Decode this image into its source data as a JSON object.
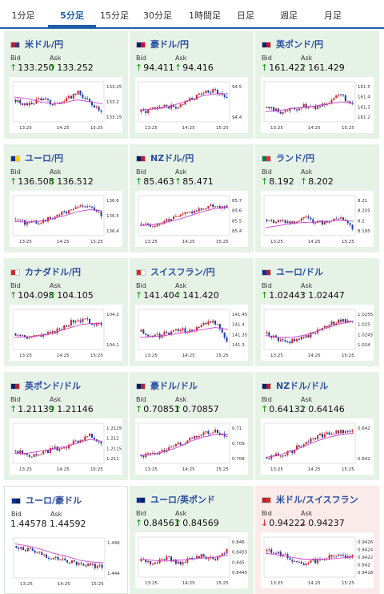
{
  "tabs": [
    "1分足",
    "5分足",
    "15分足",
    "30分足",
    "1時間足",
    "日足",
    "週足",
    "月足"
  ],
  "active_tab": "5分足",
  "colors": {
    "accent": "#1f5fa8",
    "up": "#1a8f1a",
    "down": "#d02020",
    "card_up": "#e7f2e7",
    "card_down": "#fbeaea",
    "candle_up": "#d42020",
    "candle_down": "#1a3ca8",
    "ma": "#cc44cc"
  },
  "bid_label": "Bid",
  "ask_label": "Ask",
  "pairs": [
    {
      "name": "米ドル/円",
      "bid": "133.250",
      "ask": "133.252",
      "dir": "up",
      "state": "up",
      "flag": [
        "#b22234",
        "#3c3b6e"
      ],
      "yticks": [
        "133.25",
        "133.2",
        "133.15"
      ],
      "xticks": [
        "13:25",
        "14:25",
        "15:25"
      ],
      "trend": [
        0.55,
        0.4,
        0.6,
        0.45,
        0.5,
        0.75,
        0.5,
        0.3
      ],
      "ma": [
        0.62,
        0.58,
        0.5,
        0.45,
        0.48,
        0.55,
        0.5,
        0.45
      ]
    },
    {
      "name": "豪ドル/円",
      "bid": "94.411",
      "ask": "94.416",
      "dir": "up",
      "state": "up",
      "flag": [
        "#012169",
        "#e4002b"
      ],
      "yticks": [
        "94.5",
        "94.4"
      ],
      "xticks": [
        "13:25",
        "14:25",
        "15:25"
      ],
      "trend": [
        0.25,
        0.3,
        0.4,
        0.35,
        0.55,
        0.7,
        0.8,
        0.6
      ],
      "ma": [
        0.3,
        0.32,
        0.35,
        0.45,
        0.55,
        0.65,
        0.7,
        0.7
      ]
    },
    {
      "name": "英ポンド/円",
      "bid": "161.422",
      "ask": "161.429",
      "dir": "up",
      "state": "up",
      "flag": [
        "#012169",
        "#c8102e"
      ],
      "yticks": [
        "161.5",
        "161.4",
        "161.3",
        "161.2"
      ],
      "xticks": [
        "13:25",
        "14:25",
        "15:25"
      ],
      "trend": [
        0.35,
        0.25,
        0.3,
        0.4,
        0.35,
        0.5,
        0.7,
        0.4
      ],
      "ma": [
        0.25,
        0.28,
        0.33,
        0.36,
        0.4,
        0.45,
        0.5,
        0.45
      ]
    },
    {
      "name": "ユーロ/円",
      "bid": "136.508",
      "ask": "136.512",
      "dir": "up",
      "state": "up",
      "flag": [
        "#003399",
        "#ffcc00"
      ],
      "yticks": [
        "136.6",
        "136.5",
        "136.4"
      ],
      "xticks": [
        "13:25",
        "14:25",
        "15:25"
      ],
      "trend": [
        0.4,
        0.3,
        0.35,
        0.45,
        0.6,
        0.7,
        0.75,
        0.5
      ],
      "ma": [
        0.35,
        0.34,
        0.36,
        0.42,
        0.5,
        0.6,
        0.65,
        0.62
      ]
    },
    {
      "name": "NZドル/円",
      "bid": "85.463",
      "ask": "85.471",
      "dir": "up",
      "state": "up",
      "flag": [
        "#012169",
        "#cc142b"
      ],
      "yticks": [
        "85.7",
        "85.6",
        "85.5",
        "85.4"
      ],
      "xticks": [
        "13:25",
        "14:25",
        "15:25"
      ],
      "trend": [
        0.3,
        0.25,
        0.4,
        0.5,
        0.55,
        0.7,
        0.75,
        0.72
      ],
      "ma": [
        0.25,
        0.28,
        0.33,
        0.4,
        0.5,
        0.6,
        0.68,
        0.7
      ]
    },
    {
      "name": "ランド/円",
      "bid": "8.192",
      "ask": "8.202",
      "dir": "up",
      "state": "up",
      "flag": [
        "#007a4d",
        "#de3831"
      ],
      "yticks": [
        "8.21",
        "8.205",
        "8.2",
        "8.195"
      ],
      "xticks": [
        "13:25",
        "14:25",
        "15:25"
      ],
      "trend": [
        0.4,
        0.35,
        0.3,
        0.45,
        0.35,
        0.3,
        0.5,
        0.2
      ],
      "ma": [
        0.2,
        0.25,
        0.3,
        0.33,
        0.34,
        0.36,
        0.38,
        0.36
      ]
    },
    {
      "name": "カナダドル/円",
      "bid": "104.098",
      "ask": "104.105",
      "dir": "up",
      "state": "up",
      "flag": [
        "#d52b1e",
        "#ffffff"
      ],
      "yticks": [
        "104.2",
        "104.1"
      ],
      "xticks": [
        "13:25",
        "14:25",
        "15:25"
      ],
      "trend": [
        0.4,
        0.3,
        0.35,
        0.4,
        0.6,
        0.75,
        0.7,
        0.6
      ],
      "ma": [
        0.3,
        0.32,
        0.34,
        0.4,
        0.5,
        0.6,
        0.65,
        0.65
      ]
    },
    {
      "name": "スイスフラン/円",
      "bid": "141.404",
      "ask": "141.420",
      "dir": "up",
      "state": "up",
      "flag": [
        "#d52b1e",
        "#ffffff"
      ],
      "yticks": [
        "141.45",
        "141.4",
        "141.35",
        "141.3"
      ],
      "xticks": [
        "13:25",
        "14:25",
        "15:25"
      ],
      "trend": [
        0.45,
        0.3,
        0.4,
        0.5,
        0.45,
        0.6,
        0.7,
        0.25
      ],
      "ma": [
        0.3,
        0.32,
        0.35,
        0.4,
        0.45,
        0.5,
        0.55,
        0.5
      ]
    },
    {
      "name": "ユーロ/ドル",
      "bid": "1.02443",
      "ask": "1.02447",
      "dir": "up",
      "state": "up",
      "flag": [
        "#003399",
        "#b22234"
      ],
      "yticks": [
        "1.0255",
        "1.025",
        "1.0245",
        "1.024"
      ],
      "xticks": [
        "13:25",
        "14:25",
        "15:25"
      ],
      "trend": [
        0.4,
        0.25,
        0.2,
        0.3,
        0.45,
        0.6,
        0.75,
        0.7
      ],
      "ma": [
        0.35,
        0.3,
        0.3,
        0.35,
        0.45,
        0.55,
        0.65,
        0.7
      ]
    },
    {
      "name": "英ポンド/ドル",
      "bid": "1.21139",
      "ask": "1.21146",
      "dir": "up",
      "state": "up",
      "flag": [
        "#012169",
        "#b22234"
      ],
      "yticks": [
        "1.2125",
        "1.212",
        "1.2115",
        "1.211"
      ],
      "xticks": [
        "13:25",
        "14:25",
        "15:25"
      ],
      "trend": [
        0.3,
        0.2,
        0.25,
        0.35,
        0.4,
        0.55,
        0.7,
        0.45
      ],
      "ma": [
        0.25,
        0.25,
        0.3,
        0.35,
        0.42,
        0.5,
        0.6,
        0.55
      ]
    },
    {
      "name": "豪ドル/ドル",
      "bid": "0.70851",
      "ask": "0.70857",
      "dir": "up",
      "state": "up",
      "flag": [
        "#012169",
        "#b22234"
      ],
      "yticks": [
        "0.71",
        "0.709",
        "0.708"
      ],
      "xticks": [
        "13:25",
        "14:25",
        "15:25"
      ],
      "trend": [
        0.2,
        0.2,
        0.3,
        0.45,
        0.6,
        0.75,
        0.8,
        0.7
      ],
      "ma": [
        0.2,
        0.22,
        0.3,
        0.4,
        0.55,
        0.65,
        0.72,
        0.72
      ]
    },
    {
      "name": "NZドル/ドル",
      "bid": "0.64132",
      "ask": "0.64146",
      "dir": "up",
      "state": "up",
      "flag": [
        "#012169",
        "#b22234"
      ],
      "yticks": [
        "0.642",
        "0.642"
      ],
      "xticks": [
        "13:25",
        "14:25",
        "15:25"
      ],
      "trend": [
        0.15,
        0.2,
        0.3,
        0.5,
        0.65,
        0.75,
        0.8,
        0.8
      ],
      "ma": [
        0.15,
        0.2,
        0.3,
        0.42,
        0.55,
        0.65,
        0.72,
        0.75
      ]
    },
    {
      "name": "ユーロ/豪ドル",
      "bid": "1.44578",
      "ask": "1.44592",
      "dir": "none",
      "state": "neutral",
      "flag": [
        "#003399",
        "#012169"
      ],
      "yticks": [
        "1.446",
        "1.444"
      ],
      "xticks": [
        "13:25",
        "14:25",
        "15:25"
      ],
      "trend": [
        0.8,
        0.7,
        0.6,
        0.5,
        0.45,
        0.35,
        0.3,
        0.3
      ],
      "ma": [
        0.85,
        0.8,
        0.72,
        0.62,
        0.55,
        0.45,
        0.4,
        0.38
      ]
    },
    {
      "name": "ユーロ/英ポンド",
      "bid": "0.84561",
      "ask": "0.84569",
      "dir": "up",
      "state": "up",
      "flag": [
        "#003399",
        "#012169"
      ],
      "yticks": [
        "0.846",
        "0.8455",
        "0.845",
        "0.8445"
      ],
      "xticks": [
        "13:25",
        "14:25",
        "15:25"
      ],
      "trend": [
        0.4,
        0.35,
        0.5,
        0.35,
        0.45,
        0.55,
        0.4,
        0.7
      ],
      "ma": [
        0.45,
        0.42,
        0.4,
        0.42,
        0.45,
        0.48,
        0.5,
        0.55
      ]
    },
    {
      "name": "米ドル/スイスフラン",
      "bid": "0.94222",
      "ask": "0.94237",
      "dir": "down",
      "state": "down",
      "flag": [
        "#b22234",
        "#d52b1e"
      ],
      "yticks": [
        "0.9426",
        "0.9424",
        "0.9422",
        "0.942",
        "0.9418"
      ],
      "xticks": [
        "13:25",
        "14:25",
        "15:25"
      ],
      "trend": [
        0.65,
        0.6,
        0.45,
        0.35,
        0.4,
        0.5,
        0.55,
        0.5
      ],
      "ma": [
        0.6,
        0.55,
        0.5,
        0.45,
        0.45,
        0.45,
        0.48,
        0.5
      ]
    }
  ]
}
